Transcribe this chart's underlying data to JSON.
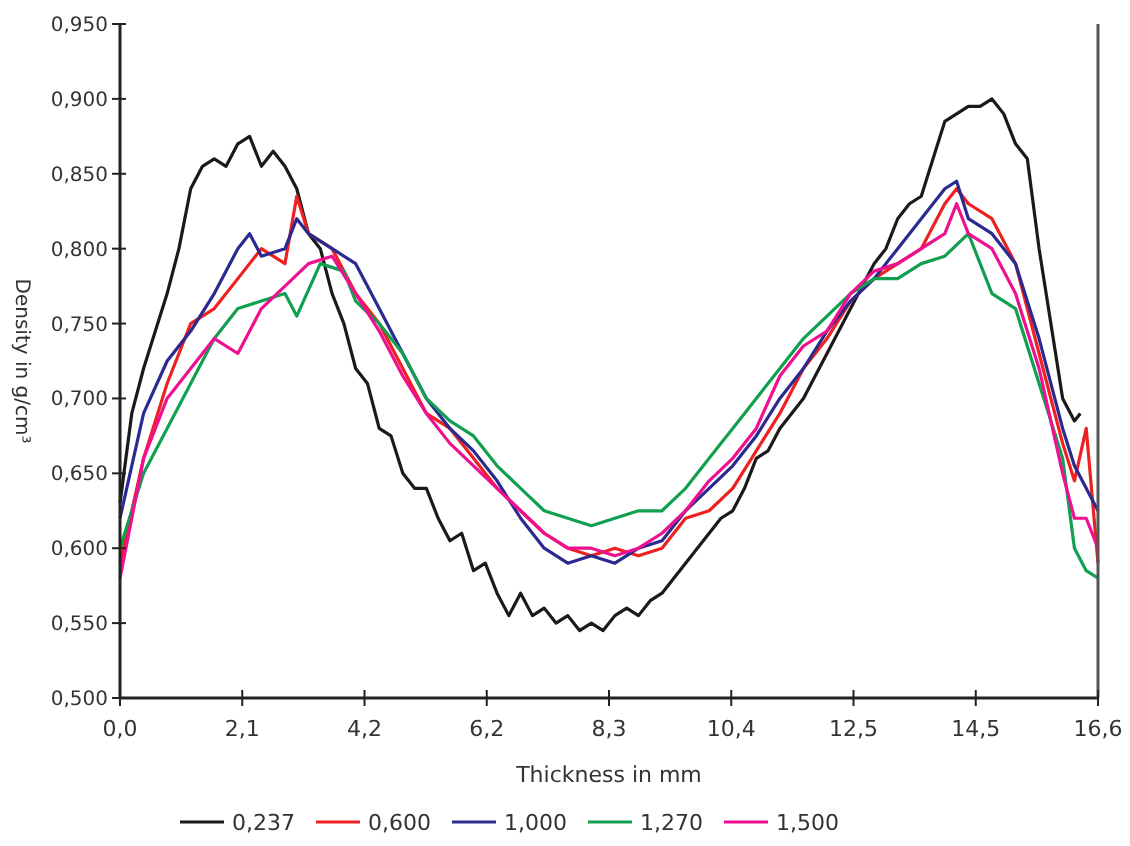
{
  "chart_data": {
    "type": "line",
    "xlabel": "Thickness in mm",
    "ylabel": "Density in g/cm³",
    "xlim": [
      0,
      16.6
    ],
    "ylim": [
      0.5,
      0.95
    ],
    "xticks": [
      {
        "value": 0,
        "label": "0,0"
      },
      {
        "value": 2.075,
        "label": "2,1"
      },
      {
        "value": 4.15,
        "label": "4,2"
      },
      {
        "value": 6.225,
        "label": "6,2"
      },
      {
        "value": 8.3,
        "label": "8,3"
      },
      {
        "value": 10.375,
        "label": "10,4"
      },
      {
        "value": 12.45,
        "label": "12,5"
      },
      {
        "value": 14.525,
        "label": "14,5"
      },
      {
        "value": 16.6,
        "label": "16,6"
      }
    ],
    "yticks": [
      {
        "value": 0.5,
        "label": "0,500"
      },
      {
        "value": 0.55,
        "label": "0,550"
      },
      {
        "value": 0.6,
        "label": "0,600"
      },
      {
        "value": 0.65,
        "label": "0,650"
      },
      {
        "value": 0.7,
        "label": "0,700"
      },
      {
        "value": 0.75,
        "label": "0,750"
      },
      {
        "value": 0.8,
        "label": "0,800"
      },
      {
        "value": 0.85,
        "label": "0,850"
      },
      {
        "value": 0.9,
        "label": "0,900"
      },
      {
        "value": 0.95,
        "label": "0,950"
      }
    ],
    "grid": false,
    "legend": "bottom",
    "line_style": "solid",
    "marker": "none",
    "series": [
      {
        "name": "0,237",
        "color": "#1a1a1a",
        "x": [
          0,
          0.2,
          0.4,
          0.8,
          1,
          1.2,
          1.4,
          1.6,
          1.8,
          2,
          2.2,
          2.4,
          2.6,
          2.8,
          3,
          3.2,
          3.4,
          3.6,
          3.8,
          4,
          4.2,
          4.4,
          4.6,
          4.8,
          5,
          5.2,
          5.4,
          5.6,
          5.8,
          6,
          6.2,
          6.4,
          6.6,
          6.8,
          7,
          7.2,
          7.4,
          7.6,
          7.8,
          8,
          8.2,
          8.4,
          8.6,
          8.8,
          9,
          9.2,
          9.4,
          9.6,
          9.8,
          10,
          10.2,
          10.4,
          10.6,
          10.8,
          11,
          11.2,
          11.4,
          11.6,
          11.8,
          12,
          12.2,
          12.4,
          12.6,
          12.8,
          13,
          13.2,
          13.4,
          13.6,
          13.8,
          14,
          14.2,
          14.4,
          14.6,
          14.8,
          15,
          15.2,
          15.4,
          15.6,
          15.8,
          16,
          16.2,
          16.3
        ],
        "values": [
          0.63,
          0.69,
          0.72,
          0.77,
          0.8,
          0.84,
          0.855,
          0.86,
          0.855,
          0.87,
          0.875,
          0.855,
          0.865,
          0.855,
          0.84,
          0.81,
          0.8,
          0.77,
          0.75,
          0.72,
          0.71,
          0.68,
          0.675,
          0.65,
          0.64,
          0.64,
          0.62,
          0.605,
          0.61,
          0.585,
          0.59,
          0.57,
          0.555,
          0.57,
          0.555,
          0.56,
          0.55,
          0.555,
          0.545,
          0.55,
          0.545,
          0.555,
          0.56,
          0.555,
          0.565,
          0.57,
          0.58,
          0.59,
          0.6,
          0.61,
          0.62,
          0.625,
          0.64,
          0.66,
          0.665,
          0.68,
          0.69,
          0.7,
          0.715,
          0.73,
          0.745,
          0.76,
          0.775,
          0.79,
          0.8,
          0.82,
          0.83,
          0.835,
          0.86,
          0.885,
          0.89,
          0.895,
          0.895,
          0.9,
          0.89,
          0.87,
          0.86,
          0.8,
          0.75,
          0.7,
          0.685,
          0.69
        ]
      },
      {
        "name": "0,600",
        "color": "#ee2020",
        "x": [
          0,
          0.4,
          0.8,
          1.2,
          1.6,
          2,
          2.4,
          2.8,
          3,
          3.2,
          3.6,
          4,
          4.4,
          4.8,
          5.2,
          5.6,
          6,
          6.4,
          6.8,
          7.2,
          7.6,
          8,
          8.4,
          8.8,
          9.2,
          9.6,
          10,
          10.4,
          10.8,
          11.2,
          11.6,
          12,
          12.4,
          12.8,
          13.2,
          13.6,
          14,
          14.2,
          14.4,
          14.8,
          15.2,
          15.6,
          16,
          16.2,
          16.4,
          16.6
        ],
        "values": [
          0.59,
          0.66,
          0.71,
          0.75,
          0.76,
          0.78,
          0.8,
          0.79,
          0.835,
          0.81,
          0.8,
          0.77,
          0.75,
          0.72,
          0.69,
          0.68,
          0.66,
          0.64,
          0.625,
          0.61,
          0.6,
          0.595,
          0.6,
          0.595,
          0.6,
          0.62,
          0.625,
          0.64,
          0.665,
          0.69,
          0.72,
          0.74,
          0.765,
          0.78,
          0.79,
          0.8,
          0.83,
          0.84,
          0.83,
          0.82,
          0.79,
          0.73,
          0.67,
          0.645,
          0.68,
          0.59
        ]
      },
      {
        "name": "1,000",
        "color": "#2a2a90",
        "x": [
          0,
          0.4,
          0.8,
          1.2,
          1.6,
          2,
          2.2,
          2.4,
          2.8,
          3,
          3.2,
          3.6,
          4,
          4.4,
          4.8,
          5.2,
          5.6,
          6,
          6.4,
          6.8,
          7.2,
          7.6,
          8,
          8.4,
          8.8,
          9.2,
          9.6,
          10,
          10.4,
          10.8,
          11.2,
          11.6,
          12,
          12.4,
          12.8,
          13.2,
          13.6,
          14,
          14.2,
          14.4,
          14.8,
          15.2,
          15.6,
          16,
          16.2,
          16.6
        ],
        "values": [
          0.62,
          0.69,
          0.725,
          0.745,
          0.77,
          0.8,
          0.81,
          0.795,
          0.8,
          0.82,
          0.81,
          0.8,
          0.79,
          0.76,
          0.73,
          0.7,
          0.68,
          0.665,
          0.645,
          0.62,
          0.6,
          0.59,
          0.595,
          0.59,
          0.6,
          0.605,
          0.625,
          0.64,
          0.655,
          0.675,
          0.7,
          0.72,
          0.745,
          0.765,
          0.78,
          0.8,
          0.82,
          0.84,
          0.845,
          0.82,
          0.81,
          0.79,
          0.74,
          0.68,
          0.655,
          0.625
        ]
      },
      {
        "name": "1,270",
        "color": "#10a050",
        "x": [
          0,
          0.4,
          0.8,
          1.2,
          1.6,
          2,
          2.4,
          2.8,
          3,
          3.4,
          3.8,
          4,
          4.4,
          4.8,
          5.2,
          5.6,
          6,
          6.4,
          6.8,
          7.2,
          7.6,
          8,
          8.4,
          8.8,
          9.2,
          9.6,
          10,
          10.4,
          10.8,
          11.2,
          11.6,
          12,
          12.4,
          12.8,
          13.2,
          13.6,
          14,
          14.4,
          14.8,
          15.2,
          15.6,
          16,
          16.2,
          16.4,
          16.6
        ],
        "values": [
          0.6,
          0.65,
          0.68,
          0.71,
          0.74,
          0.76,
          0.765,
          0.77,
          0.755,
          0.79,
          0.785,
          0.765,
          0.75,
          0.73,
          0.7,
          0.685,
          0.675,
          0.655,
          0.64,
          0.625,
          0.62,
          0.615,
          0.62,
          0.625,
          0.625,
          0.64,
          0.66,
          0.68,
          0.7,
          0.72,
          0.74,
          0.755,
          0.77,
          0.78,
          0.78,
          0.79,
          0.795,
          0.81,
          0.77,
          0.76,
          0.71,
          0.66,
          0.6,
          0.585,
          0.58
        ]
      },
      {
        "name": "1,500",
        "color": "#ee1090",
        "x": [
          0,
          0.4,
          0.8,
          1.2,
          1.6,
          2,
          2.4,
          2.8,
          3.2,
          3.6,
          4,
          4.4,
          4.8,
          5.2,
          5.6,
          6,
          6.4,
          6.8,
          7.2,
          7.6,
          8,
          8.4,
          8.8,
          9.2,
          9.6,
          10,
          10.4,
          10.8,
          11.2,
          11.6,
          12,
          12.4,
          12.8,
          13.2,
          13.6,
          14,
          14.2,
          14.4,
          14.8,
          15.2,
          15.6,
          16,
          16.2,
          16.4,
          16.6
        ],
        "values": [
          0.58,
          0.66,
          0.7,
          0.72,
          0.74,
          0.73,
          0.76,
          0.775,
          0.79,
          0.795,
          0.77,
          0.745,
          0.715,
          0.69,
          0.67,
          0.655,
          0.64,
          0.625,
          0.61,
          0.6,
          0.6,
          0.595,
          0.6,
          0.61,
          0.625,
          0.645,
          0.66,
          0.68,
          0.715,
          0.735,
          0.745,
          0.77,
          0.785,
          0.79,
          0.8,
          0.81,
          0.83,
          0.81,
          0.8,
          0.77,
          0.72,
          0.65,
          0.62,
          0.62,
          0.6
        ]
      }
    ]
  }
}
